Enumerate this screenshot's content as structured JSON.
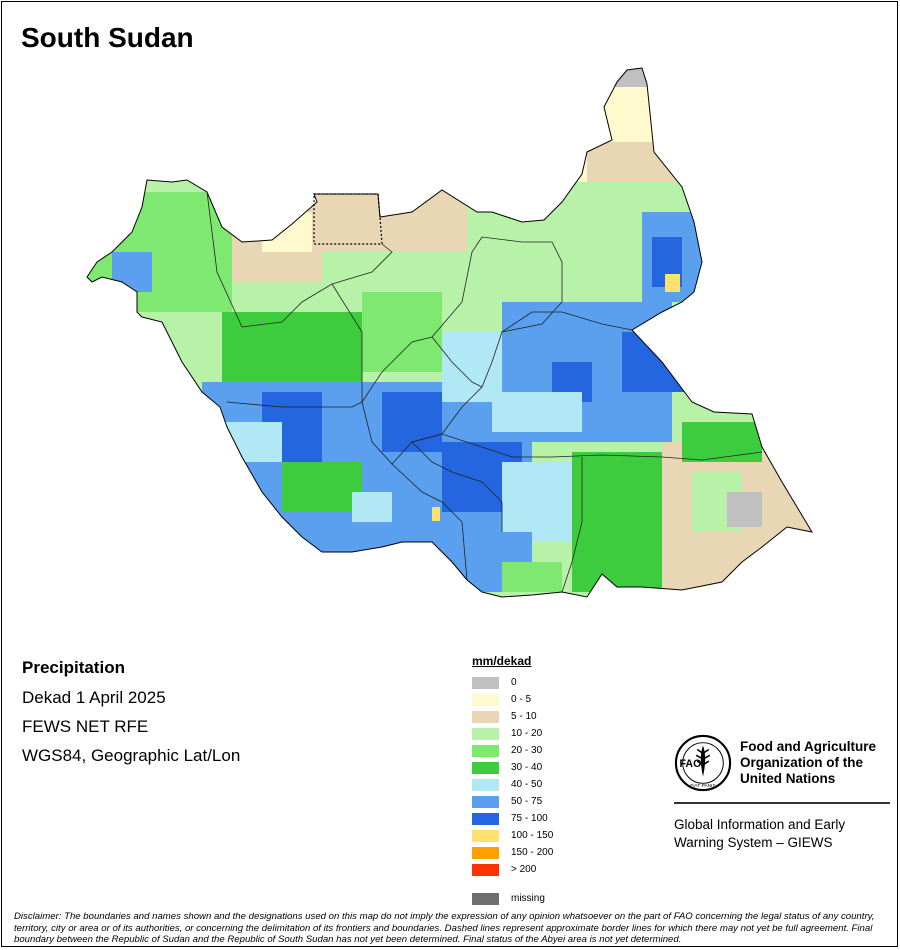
{
  "map": {
    "title": "South Sudan"
  },
  "info": {
    "heading": "Precipitation",
    "lines": [
      "Dekad 1 April 2025",
      "FEWS NET RFE",
      "WGS84, Geographic Lat/Lon"
    ]
  },
  "legend": {
    "title": "mm/dekad",
    "classes": [
      {
        "label": "0",
        "color": "#c0c0c0"
      },
      {
        "label": "0 - 5",
        "color": "#fffacd"
      },
      {
        "label": "5 - 10",
        "color": "#e8d6b4"
      },
      {
        "label": "10 - 20",
        "color": "#b8f2a8"
      },
      {
        "label": "20 - 30",
        "color": "#7ee870"
      },
      {
        "label": "30 - 40",
        "color": "#3dcc3d"
      },
      {
        "label": "40 - 50",
        "color": "#b0e8f5"
      },
      {
        "label": "50 - 75",
        "color": "#5aa0ee"
      },
      {
        "label": "75 - 100",
        "color": "#2466e0"
      },
      {
        "label": "100 - 150",
        "color": "#ffe070"
      },
      {
        "label": "150 - 200",
        "color": "#ffa000"
      },
      {
        "label": "> 200",
        "color": "#ff3300"
      }
    ],
    "missing": {
      "label": "missing",
      "color": "#6e6e6e"
    }
  },
  "organization": {
    "name_lines": [
      "Food and Agriculture",
      "Organization of the",
      "United Nations"
    ],
    "logo_text": "FAO",
    "logo_motto": "FIAT PANIS",
    "system_lines": [
      "Global Information and Early",
      "Warning System – GIEWS"
    ]
  },
  "disclaimer": "Disclaimer: The boundaries and names shown and the designations used on this map do not imply the expression of any opinion whatsoever on the part of FAO concerning the legal status of any country, territory, city or area or of its authorities, or concerning the delimitation of its frontiers and boundaries. Dashed lines represent approximate border lines for which there may not yet be full agreement.  Final boundary between the Republic of Sudan and the Republic of South Sudan has not yet been determined. Final status of the Abyei area is not yet determined."
}
